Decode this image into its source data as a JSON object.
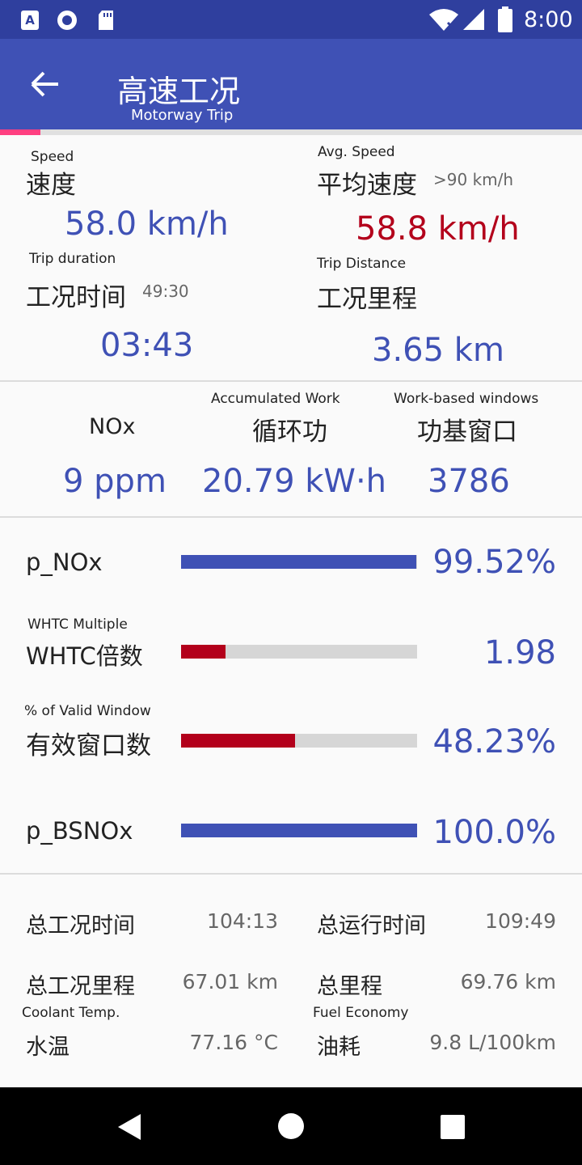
{
  "status_bar": {
    "time": "8:00"
  },
  "app_bar": {
    "title": "高速工况",
    "subtitle": "Motorway Trip"
  },
  "stats": {
    "speed": {
      "en": "Speed",
      "zh": "速度",
      "value": "58.0 km/h"
    },
    "avg_speed": {
      "en": "Avg. Speed",
      "zh": "平均速度",
      "note": ">90 km/h",
      "value": "58.8 km/h"
    },
    "trip_duration": {
      "en": "Trip duration",
      "zh": "工况时间",
      "note": "49:30",
      "value": "03:43"
    },
    "trip_distance": {
      "en": "Trip Distance",
      "zh": "工况里程",
      "value": "3.65 km"
    }
  },
  "metrics": {
    "nox": {
      "label": "NOx",
      "value": "9 ppm"
    },
    "work": {
      "en": "Accumulated Work",
      "zh": "循环功",
      "value": "20.79 kW·h"
    },
    "windows": {
      "en": "Work-based windows",
      "zh": "功基窗口",
      "value": "3786"
    }
  },
  "bars": {
    "p_nox": {
      "label": "p_NOx",
      "value": "99.52%",
      "fraction": 0.9952,
      "color": "#3f51b5"
    },
    "whtc": {
      "en": "WHTC Multiple",
      "zh": "WHTC倍数",
      "value": "1.98",
      "fraction": 0.19,
      "color": "#b3001b"
    },
    "valid_window": {
      "en": "% of Valid Window",
      "zh": "有效窗口数",
      "value": "48.23%",
      "fraction": 0.4823,
      "color": "#b3001b"
    },
    "p_bsnox": {
      "label": "p_BSNOx",
      "value": "100.0%",
      "fraction": 1.0,
      "color": "#3f51b5"
    }
  },
  "totals": {
    "total_trip_time": {
      "label": "总工况时间",
      "value": "104:13"
    },
    "total_run_time": {
      "label": "总运行时间",
      "value": "109:49"
    },
    "total_trip_distance": {
      "label": "总工况里程",
      "value": "67.01 km"
    },
    "total_distance": {
      "label": "总里程",
      "value": "69.76 km"
    },
    "coolant": {
      "en": "Coolant Temp.",
      "zh": "水温",
      "value": "77.16 °C"
    },
    "fuel": {
      "en": "Fuel Economy",
      "zh": "油耗",
      "value": "9.8 L/100km"
    }
  }
}
